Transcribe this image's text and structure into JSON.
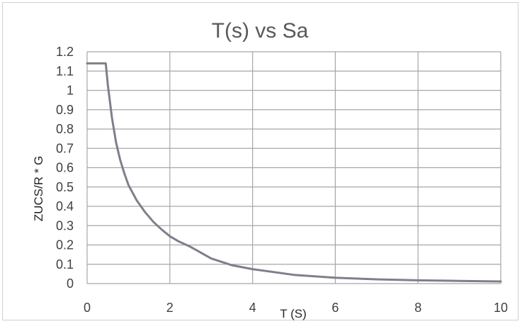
{
  "chart_data": {
    "type": "line",
    "title": "T(s) vs Sa",
    "xlabel": "T (S)",
    "ylabel": "ZUCS/R * G",
    "xlim": [
      0,
      10
    ],
    "ylim": [
      0,
      1.2
    ],
    "x_ticks": [
      "0",
      "2",
      "4",
      "6",
      "8",
      "10"
    ],
    "y_ticks": [
      "0",
      "0.1",
      "0.2",
      "0.3",
      "0.4",
      "0.5",
      "0.6",
      "0.7",
      "0.8",
      "0.9",
      "1",
      "1.1",
      "1.2"
    ],
    "grid": true,
    "legend": "none",
    "series_color": "#7f7f8a",
    "series": [
      {
        "x": [
          0,
          0.45,
          0.5,
          0.6,
          0.7,
          0.8,
          0.9,
          1.0,
          1.2,
          1.4,
          1.6,
          1.8,
          2.0,
          2.2,
          2.5,
          3.0,
          3.5,
          4.0,
          5.0,
          6.0,
          7.0,
          8.0,
          9.0,
          10.0
        ],
        "y": [
          1.14,
          1.14,
          1.03,
          0.86,
          0.73,
          0.64,
          0.57,
          0.51,
          0.43,
          0.37,
          0.32,
          0.28,
          0.245,
          0.22,
          0.19,
          0.13,
          0.095,
          0.075,
          0.045,
          0.03,
          0.022,
          0.017,
          0.014,
          0.011
        ]
      }
    ]
  }
}
